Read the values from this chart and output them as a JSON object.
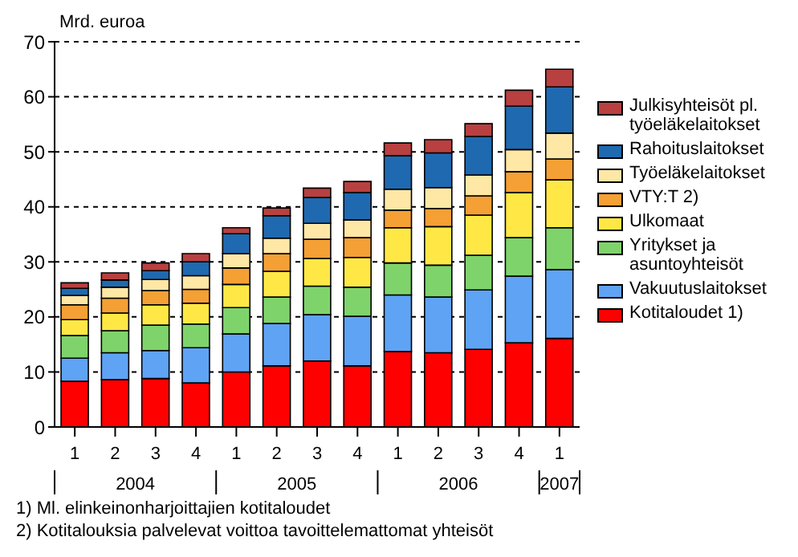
{
  "chart_data": {
    "type": "bar",
    "stacked": true,
    "ylabel": "Mrd. euroa",
    "categories": [
      "1",
      "2",
      "3",
      "4",
      "1",
      "2",
      "3",
      "4",
      "1",
      "2",
      "3",
      "4",
      "1"
    ],
    "series": [
      {
        "name": "Kotitaloudet 1)",
        "color": "#ff0000",
        "values": [
          8.3,
          8.6,
          8.8,
          8.0,
          10.0,
          11.1,
          12.0,
          11.1,
          13.7,
          13.5,
          14.1,
          15.3,
          16.1
        ]
      },
      {
        "name": "Vakuutuslaitokset",
        "color": "#5fa3f5",
        "values": [
          4.2,
          4.9,
          5.1,
          6.4,
          6.9,
          7.7,
          8.4,
          9.0,
          10.3,
          10.1,
          10.8,
          12.1,
          12.5
        ]
      },
      {
        "name": "Yritykset ja asuntoyhteisöt",
        "color": "#7fd36b",
        "values": [
          4.1,
          4.0,
          4.6,
          4.3,
          4.8,
          4.8,
          5.2,
          5.3,
          5.8,
          5.8,
          6.3,
          7.0,
          7.6
        ]
      },
      {
        "name": "Ulkomaat",
        "color": "#ffe845",
        "values": [
          2.9,
          3.2,
          3.7,
          3.8,
          4.2,
          4.7,
          5.0,
          5.4,
          6.4,
          7.0,
          7.3,
          8.2,
          8.7
        ]
      },
      {
        "name": "VTY:T 2)",
        "color": "#f4a035",
        "values": [
          2.7,
          2.7,
          2.6,
          2.5,
          3.0,
          3.2,
          3.5,
          3.6,
          3.2,
          3.3,
          3.5,
          3.8,
          3.8
        ]
      },
      {
        "name": "Työeläkelaitokset",
        "color": "#ffe7a6",
        "values": [
          1.7,
          2.0,
          2.0,
          2.5,
          2.6,
          2.8,
          2.9,
          3.2,
          3.8,
          3.8,
          3.8,
          4.0,
          4.7
        ]
      },
      {
        "name": "Rahoituslaitokset",
        "color": "#1f69b0",
        "values": [
          1.3,
          1.3,
          1.6,
          2.5,
          3.6,
          4.1,
          4.7,
          5.0,
          6.1,
          6.3,
          7.0,
          7.9,
          8.4
        ]
      },
      {
        "name": "Julkisyhteisöt pl. työeläkelaitokset",
        "color": "#b84040",
        "values": [
          1.0,
          1.3,
          1.4,
          1.5,
          1.1,
          1.4,
          1.7,
          2.0,
          2.3,
          2.4,
          2.3,
          2.9,
          3.2
        ]
      }
    ],
    "ylim": [
      0,
      70
    ],
    "yticks": [
      0,
      10,
      20,
      30,
      40,
      50,
      60,
      70
    ],
    "grid": "y",
    "legend": "right",
    "annotations": [
      "2004",
      "2005",
      "2006",
      "2007",
      "1) Ml. elinkeinonharjoittajien kotitaloudet",
      "2) Kotitalouksia palvelevat voittoa tavoittelemattomat yhteisöt"
    ]
  }
}
